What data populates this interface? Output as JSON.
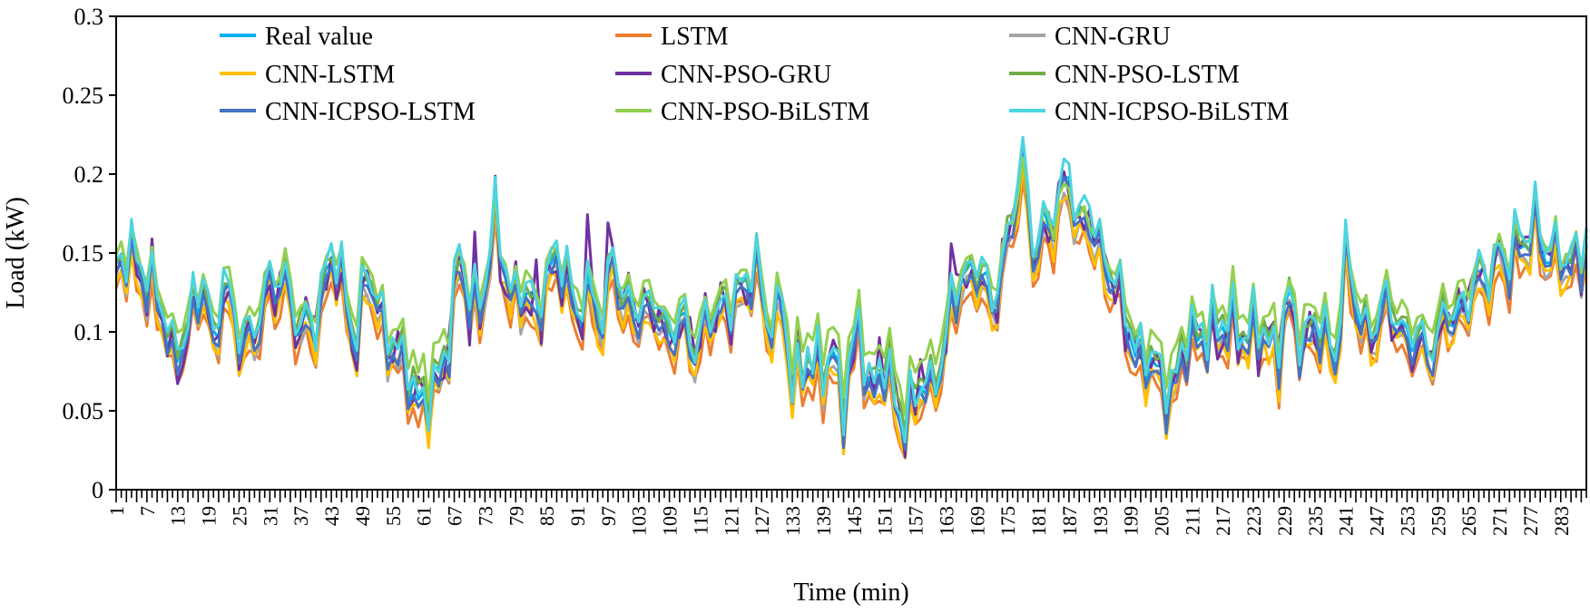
{
  "chart_data": {
    "type": "line",
    "xlabel": "Time (min)",
    "ylabel": "Load (kW)",
    "ylim": [
      0,
      0.3
    ],
    "xlim": [
      1,
      288
    ],
    "y_ticks": [
      "0",
      "0.05",
      "0.1",
      "0.15",
      "0.2",
      "0.25",
      "0.3"
    ],
    "x_tick_start": 1,
    "x_tick_step": 6,
    "x_tick_end": 283,
    "legend_position": "top (inside plot, 3 columns)",
    "key_points": [
      [
        1,
        0.145
      ],
      [
        3,
        0.155
      ],
      [
        6,
        0.13
      ],
      [
        8,
        0.14
      ],
      [
        10,
        0.115
      ],
      [
        12,
        0.075
      ],
      [
        15,
        0.11
      ],
      [
        18,
        0.125
      ],
      [
        20,
        0.095
      ],
      [
        22,
        0.135
      ],
      [
        25,
        0.09
      ],
      [
        28,
        0.105
      ],
      [
        31,
        0.125
      ],
      [
        34,
        0.14
      ],
      [
        37,
        0.095
      ],
      [
        40,
        0.11
      ],
      [
        43,
        0.145
      ],
      [
        46,
        0.125
      ],
      [
        48,
        0.095
      ],
      [
        50,
        0.135
      ],
      [
        53,
        0.11
      ],
      [
        56,
        0.08
      ],
      [
        58,
        0.075
      ],
      [
        60,
        0.06
      ],
      [
        62,
        0.055
      ],
      [
        64,
        0.07
      ],
      [
        66,
        0.1
      ],
      [
        68,
        0.145
      ],
      [
        70,
        0.115
      ],
      [
        72,
        0.12
      ],
      [
        75,
        0.165
      ],
      [
        78,
        0.125
      ],
      [
        80,
        0.13
      ],
      [
        83,
        0.105
      ],
      [
        85,
        0.14
      ],
      [
        87,
        0.145
      ],
      [
        90,
        0.12
      ],
      [
        93,
        0.125
      ],
      [
        96,
        0.1
      ],
      [
        98,
        0.16
      ],
      [
        100,
        0.11
      ],
      [
        103,
        0.115
      ],
      [
        106,
        0.12
      ],
      [
        108,
        0.09
      ],
      [
        111,
        0.115
      ],
      [
        114,
        0.08
      ],
      [
        117,
        0.12
      ],
      [
        120,
        0.11
      ],
      [
        123,
        0.13
      ],
      [
        126,
        0.14
      ],
      [
        128,
        0.105
      ],
      [
        131,
        0.12
      ],
      [
        133,
        0.06
      ],
      [
        136,
        0.09
      ],
      [
        139,
        0.07
      ],
      [
        141,
        0.085
      ],
      [
        143,
        0.06
      ],
      [
        146,
        0.1
      ],
      [
        148,
        0.065
      ],
      [
        151,
        0.08
      ],
      [
        153,
        0.05
      ],
      [
        155,
        0.045
      ],
      [
        157,
        0.06
      ],
      [
        160,
        0.065
      ],
      [
        163,
        0.1
      ],
      [
        166,
        0.13
      ],
      [
        169,
        0.145
      ],
      [
        172,
        0.11
      ],
      [
        175,
        0.165
      ],
      [
        178,
        0.2
      ],
      [
        180,
        0.155
      ],
      [
        182,
        0.17
      ],
      [
        184,
        0.165
      ],
      [
        187,
        0.205
      ],
      [
        189,
        0.165
      ],
      [
        191,
        0.17
      ],
      [
        194,
        0.15
      ],
      [
        197,
        0.12
      ],
      [
        200,
        0.09
      ],
      [
        203,
        0.075
      ],
      [
        205,
        0.07
      ],
      [
        207,
        0.065
      ],
      [
        210,
        0.09
      ],
      [
        213,
        0.105
      ],
      [
        216,
        0.095
      ],
      [
        219,
        0.115
      ],
      [
        222,
        0.09
      ],
      [
        225,
        0.105
      ],
      [
        228,
        0.085
      ],
      [
        230,
        0.12
      ],
      [
        233,
        0.095
      ],
      [
        236,
        0.1
      ],
      [
        239,
        0.09
      ],
      [
        241,
        0.14
      ],
      [
        244,
        0.11
      ],
      [
        247,
        0.1
      ],
      [
        250,
        0.12
      ],
      [
        253,
        0.095
      ],
      [
        256,
        0.09
      ],
      [
        259,
        0.1
      ],
      [
        262,
        0.11
      ],
      [
        265,
        0.125
      ],
      [
        268,
        0.13
      ],
      [
        271,
        0.155
      ],
      [
        273,
        0.14
      ],
      [
        276,
        0.16
      ],
      [
        278,
        0.175
      ],
      [
        280,
        0.145
      ],
      [
        283,
        0.155
      ],
      [
        286,
        0.14
      ],
      [
        288,
        0.155
      ]
    ],
    "series": [
      {
        "name": "Real value",
        "color": "#00b0f0",
        "offset": 0.0,
        "scale": 1.0,
        "jitter": 0.004,
        "seed": 3
      },
      {
        "name": "LSTM",
        "color": "#ed7d31",
        "offset": -0.014,
        "scale": 0.97,
        "jitter": 0.006,
        "seed": 7
      },
      {
        "name": "CNN-GRU",
        "color": "#a5a5a5",
        "offset": -0.008,
        "scale": 0.98,
        "jitter": 0.005,
        "seed": 11
      },
      {
        "name": "CNN-LSTM",
        "color": "#ffc000",
        "offset": -0.01,
        "scale": 0.98,
        "jitter": 0.005,
        "seed": 13
      },
      {
        "name": "CNN-PSO-GRU",
        "color": "#7030a0",
        "offset": -0.002,
        "scale": 1.0,
        "jitter": 0.012,
        "seed": 17
      },
      {
        "name": "CNN-PSO-LSTM",
        "color": "#70ad47",
        "offset": 0.004,
        "scale": 0.95,
        "jitter": 0.005,
        "seed": 19
      },
      {
        "name": "CNN-ICPSO-LSTM",
        "color": "#4472c4",
        "offset": -0.004,
        "scale": 0.99,
        "jitter": 0.005,
        "seed": 23
      },
      {
        "name": "CNN-PSO-BiLSTM",
        "color": "#92d050",
        "offset": 0.01,
        "scale": 0.85,
        "jitter": 0.004,
        "seed": 29
      },
      {
        "name": "CNN-ICPSO-BiLSTM",
        "color": "#4cd4e0",
        "offset": 0.004,
        "scale": 1.02,
        "jitter": 0.006,
        "seed": 31
      }
    ]
  }
}
